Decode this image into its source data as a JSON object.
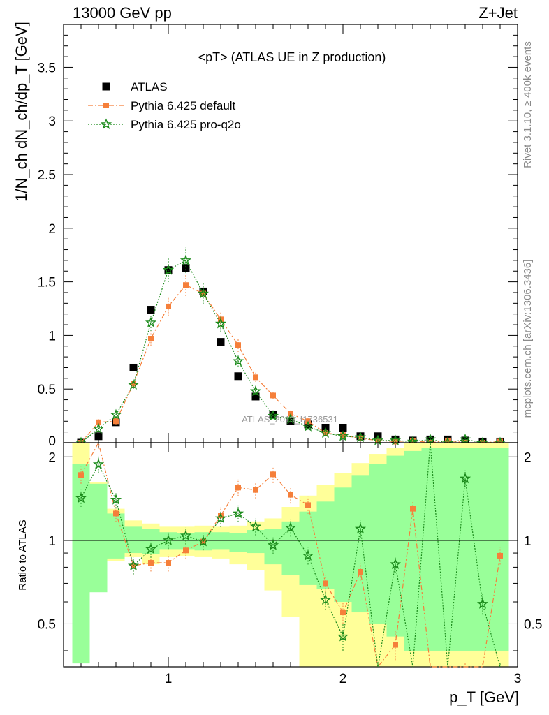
{
  "header": {
    "left": "13000 GeV pp",
    "right": "Z+Jet"
  },
  "side_text": {
    "rivet": "Rivet 3.1.10, ≥ 400k events",
    "mcplots": "mcplots.cern.ch [arXiv:1306.3436]"
  },
  "watermark": "ATLAS_2019_I1736531",
  "chart_data": {
    "type": "scatter",
    "title": "<pT> (ATLAS UE in Z production)",
    "ylabel": "1/N_ch dN_ch/dp_T [GeV]",
    "ratio_ylabel": "Ratio to ATLAS",
    "xlabel": "p_T [GeV]",
    "xlim": [
      0.4,
      3.0
    ],
    "ylim": [
      0,
      3.9
    ],
    "ratio_ylim": [
      0.35,
      2.25
    ],
    "x_ticks": [
      1,
      2,
      3
    ],
    "y_ticks": [
      0.5,
      1,
      1.5,
      2,
      2.5,
      3,
      3.5
    ],
    "ratio_y_ticks": [
      0.5,
      1,
      2
    ],
    "x": [
      0.5,
      0.6,
      0.7,
      0.8,
      0.9,
      1.0,
      1.1,
      1.2,
      1.3,
      1.4,
      1.5,
      1.6,
      1.7,
      1.8,
      1.9,
      2.0,
      2.1,
      2.2,
      2.3,
      2.4,
      2.5,
      2.6,
      2.7,
      2.8,
      2.9
    ],
    "series": [
      {
        "name": "ATLAS",
        "color": "#000000",
        "marker": "square",
        "values": [
          0.0,
          0.06,
          0.19,
          0.7,
          1.24,
          1.61,
          1.63,
          1.41,
          0.94,
          0.62,
          0.43,
          0.26,
          0.2,
          0.17,
          0.14,
          0.14,
          0.06,
          0.06,
          0.03,
          0.02,
          0.03,
          0.03,
          0.02,
          0.01,
          0.01
        ],
        "ratio": []
      },
      {
        "name": "Pythia 6.425 default",
        "color": "#f57f3a",
        "marker": "square",
        "line": "dashdot",
        "values": [
          0.0,
          0.19,
          0.2,
          0.55,
          0.97,
          1.27,
          1.47,
          1.39,
          1.15,
          0.91,
          0.61,
          0.44,
          0.27,
          0.2,
          0.09,
          0.07,
          0.04,
          0.02,
          0.01,
          0.02,
          0.0,
          0.02,
          0.0,
          0.0,
          0.01
        ],
        "ratio": [
          1.72,
          2.3,
          1.25,
          0.81,
          0.83,
          0.83,
          0.92,
          0.99,
          1.23,
          1.55,
          1.52,
          1.73,
          1.46,
          1.34,
          0.7,
          0.55,
          0.77,
          0.3,
          0.42,
          1.3,
          0.3,
          0.3,
          0.3,
          0.3,
          0.88
        ]
      },
      {
        "name": "Pythia 6.425 pro-q2o",
        "color": "#1a8a1a",
        "marker": "star",
        "line": "dotted",
        "values": [
          0.0,
          0.13,
          0.26,
          0.54,
          1.12,
          1.61,
          1.7,
          1.39,
          1.11,
          0.76,
          0.48,
          0.25,
          0.22,
          0.15,
          0.09,
          0.06,
          0.05,
          0.02,
          0.02,
          0.01,
          0.03,
          0.0,
          0.03,
          0.0,
          0.0
        ],
        "ratio": [
          1.42,
          1.88,
          1.4,
          0.81,
          0.93,
          1.0,
          1.04,
          0.99,
          1.2,
          1.25,
          1.12,
          0.96,
          1.11,
          0.88,
          0.61,
          0.45,
          1.1,
          0.3,
          0.82,
          0.3,
          2.4,
          0.3,
          1.67,
          0.59,
          0.3
        ]
      }
    ],
    "ratio_bands": {
      "yellow": [
        [
          0.57,
          2.4
        ],
        [
          0.68,
          1.62
        ],
        [
          0.84,
          1.3
        ],
        [
          0.87,
          1.18
        ],
        [
          0.82,
          1.15
        ],
        [
          0.87,
          1.12
        ],
        [
          0.88,
          1.12
        ],
        [
          0.87,
          1.13
        ],
        [
          0.86,
          1.12
        ],
        [
          0.82,
          1.13
        ],
        [
          0.78,
          1.17
        ],
        [
          0.66,
          1.2
        ],
        [
          0.53,
          1.32
        ],
        [
          0.35,
          1.45
        ],
        [
          0.33,
          1.58
        ],
        [
          0.3,
          1.75
        ],
        [
          0.26,
          1.9
        ],
        [
          0.3,
          2.05
        ],
        [
          0.2,
          2.15
        ],
        [
          0.3,
          2.25
        ],
        [
          0.2,
          2.3
        ],
        [
          0.3,
          2.3
        ],
        [
          0.3,
          2.3
        ],
        [
          0.3,
          2.3
        ],
        [
          0.3,
          2.3
        ]
      ],
      "green": [
        [
          0.36,
          1.88
        ],
        [
          0.65,
          1.6
        ],
        [
          0.86,
          1.25
        ],
        [
          0.9,
          1.12
        ],
        [
          0.89,
          1.1
        ],
        [
          0.93,
          1.07
        ],
        [
          0.93,
          1.06
        ],
        [
          0.92,
          1.07
        ],
        [
          0.93,
          1.07
        ],
        [
          0.91,
          1.06
        ],
        [
          0.9,
          1.09
        ],
        [
          0.82,
          1.1
        ],
        [
          0.75,
          1.17
        ],
        [
          0.69,
          1.27
        ],
        [
          0.67,
          1.38
        ],
        [
          0.6,
          1.55
        ],
        [
          0.55,
          1.72
        ],
        [
          0.5,
          1.88
        ],
        [
          0.45,
          2.02
        ],
        [
          0.4,
          2.1
        ],
        [
          0.4,
          2.15
        ],
        [
          0.4,
          2.15
        ],
        [
          0.4,
          2.15
        ],
        [
          0.4,
          2.15
        ],
        [
          0.4,
          2.15
        ]
      ]
    }
  }
}
